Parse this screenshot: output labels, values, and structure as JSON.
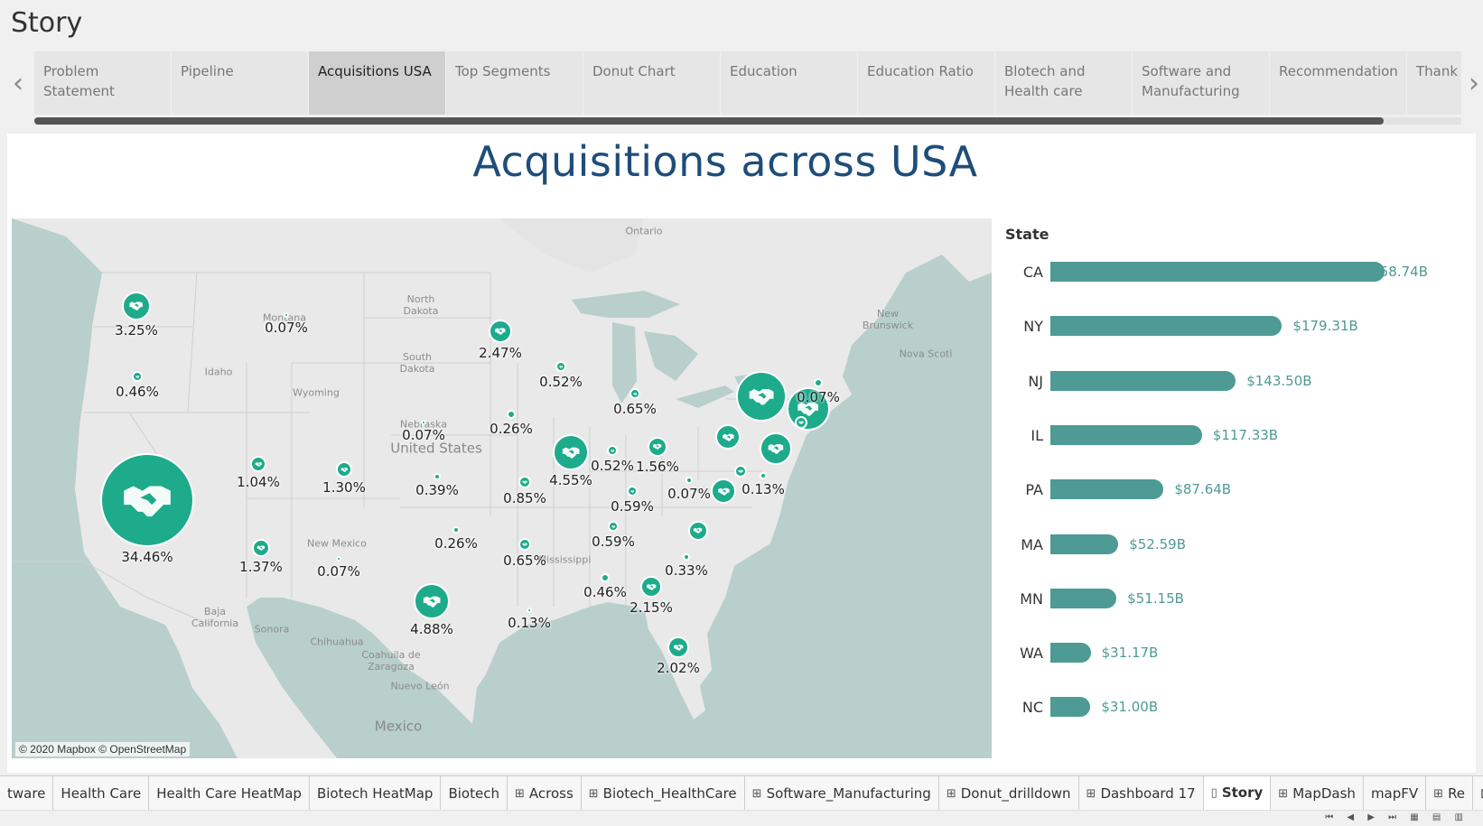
{
  "story": {
    "title": "Story"
  },
  "nav": {
    "prev": "‹",
    "next": "›"
  },
  "tabs": [
    {
      "label": "Problem Statement",
      "active": false
    },
    {
      "label": "Pipeline",
      "active": false
    },
    {
      "label": "Acquisitions USA",
      "active": true
    },
    {
      "label": "Top Segments",
      "active": false
    },
    {
      "label": "Donut Chart",
      "active": false
    },
    {
      "label": "Education",
      "active": false
    },
    {
      "label": "Education Ratio",
      "active": false
    },
    {
      "label": "Blotech and Health care",
      "active": false
    },
    {
      "label": "Software and Manufacturing",
      "active": false
    },
    {
      "label": "Recommendation",
      "active": false
    },
    {
      "label": "Thank You",
      "active": false
    }
  ],
  "dashboard": {
    "title": "Acquisitions across USA"
  },
  "map": {
    "attribution": "© 2020 Mapbox © OpenStreetMap",
    "labels": [
      {
        "text": "Ontario",
        "big": false
      },
      {
        "text": "Montana",
        "big": false
      },
      {
        "text": "North Dakota",
        "big": false
      },
      {
        "text": "South Dakota",
        "big": false
      },
      {
        "text": "Idaho",
        "big": false
      },
      {
        "text": "Wyoming",
        "big": false
      },
      {
        "text": "Nebraska",
        "big": false
      },
      {
        "text": "United States",
        "big": true
      },
      {
        "text": "New Brunswick",
        "big": false
      },
      {
        "text": "Nova Scoti",
        "big": false
      },
      {
        "text": "New Mexico",
        "big": false
      },
      {
        "text": "Sonora",
        "big": false
      },
      {
        "text": "Chihuahua",
        "big": false
      },
      {
        "text": "Coahuila de Zaragoza",
        "big": false
      },
      {
        "text": "Nuevo León",
        "big": false
      },
      {
        "text": "Baja California",
        "big": false
      },
      {
        "text": "Mexico",
        "big": true
      },
      {
        "text": "Mississippi",
        "big": false
      }
    ],
    "markers": [
      {
        "state": "WA",
        "pct": "3.25%"
      },
      {
        "state": "MT",
        "pct": "0.07%"
      },
      {
        "state": "OR",
        "pct": "0.46%"
      },
      {
        "state": "CA",
        "pct": "34.46%"
      },
      {
        "state": "UT",
        "pct": "1.04%"
      },
      {
        "state": "CO",
        "pct": "1.30%"
      },
      {
        "state": "AZ",
        "pct": "1.37%"
      },
      {
        "state": "NM",
        "pct": "0.07%"
      },
      {
        "state": "MN",
        "pct": "2.47%"
      },
      {
        "state": "WI",
        "pct": "0.52%"
      },
      {
        "state": "NE",
        "pct": "0.07%"
      },
      {
        "state": "IA",
        "pct": "0.26%"
      },
      {
        "state": "KS",
        "pct": "0.39%"
      },
      {
        "state": "MO",
        "pct": "0.85%"
      },
      {
        "state": "OK",
        "pct": "0.26%"
      },
      {
        "state": "TX",
        "pct": "4.88%"
      },
      {
        "state": "AR",
        "pct": "0.65%"
      },
      {
        "state": "LA",
        "pct": "0.13%"
      },
      {
        "state": "IL",
        "pct": "4.55%"
      },
      {
        "state": "IN",
        "pct": "0.52%"
      },
      {
        "state": "MI",
        "pct": "0.65%"
      },
      {
        "state": "OH",
        "pct": "1.56%"
      },
      {
        "state": "KY",
        "pct": "0.59%"
      },
      {
        "state": "TN",
        "pct": "0.59%"
      },
      {
        "state": "AL",
        "pct": "0.46%"
      },
      {
        "state": "GA",
        "pct": "2.15%"
      },
      {
        "state": "FL",
        "pct": "2.02%"
      },
      {
        "state": "SC",
        "pct": "0.33%"
      },
      {
        "state": "NC",
        "pct": ""
      },
      {
        "state": "VA",
        "pct": ""
      },
      {
        "state": "WV",
        "pct": "0.07%"
      },
      {
        "state": "MD",
        "pct": "0.13%"
      },
      {
        "state": "PA",
        "pct": ""
      },
      {
        "state": "NY",
        "pct": ""
      },
      {
        "state": "NJ",
        "pct": ""
      },
      {
        "state": "MA",
        "pct": ""
      },
      {
        "state": "ME",
        "pct": "0.07%"
      },
      {
        "state": "NH",
        "pct": ""
      },
      {
        "state": "DE",
        "pct": ""
      }
    ]
  },
  "chart_data": {
    "type": "bar",
    "orientation": "horizontal",
    "header": "State",
    "categories": [
      "CA",
      "NY",
      "NJ",
      "IL",
      "PA",
      "MA",
      "MN",
      "WA",
      "NC"
    ],
    "values": [
      258.74,
      179.31,
      143.5,
      117.33,
      87.64,
      52.59,
      51.15,
      31.17,
      31.0
    ],
    "value_labels": [
      "$258.74B",
      "$179.31B",
      "$143.50B",
      "$117.33B",
      "$87.64B",
      "$52.59B",
      "$51.15B",
      "$31.17B",
      "$31.00B"
    ],
    "bar_color": "#4e9a94"
  },
  "bottom_tabs": [
    {
      "label": "tware",
      "icon": "",
      "active": false
    },
    {
      "label": "Health Care",
      "icon": "",
      "active": false
    },
    {
      "label": "Health Care HeatMap",
      "icon": "",
      "active": false
    },
    {
      "label": "Biotech HeatMap",
      "icon": "",
      "active": false
    },
    {
      "label": "Biotech",
      "icon": "",
      "active": false
    },
    {
      "label": "Across",
      "icon": "⊞",
      "active": false
    },
    {
      "label": "Biotech_HealthCare",
      "icon": "⊞",
      "active": false
    },
    {
      "label": "Software_Manufacturing",
      "icon": "⊞",
      "active": false
    },
    {
      "label": "Donut_drilldown",
      "icon": "⊞",
      "active": false
    },
    {
      "label": "Dashboard 17",
      "icon": "⊞",
      "active": false
    },
    {
      "label": "Story",
      "icon": "▯",
      "active": true
    },
    {
      "label": "MapDash",
      "icon": "⊞",
      "active": false
    },
    {
      "label": "mapFV",
      "icon": "",
      "active": false
    },
    {
      "label": "Re",
      "icon": "⊞",
      "active": false
    }
  ],
  "colors": {
    "marker": "#1dab8b",
    "title": "#1f4d7a",
    "bar": "#4e9a94"
  }
}
